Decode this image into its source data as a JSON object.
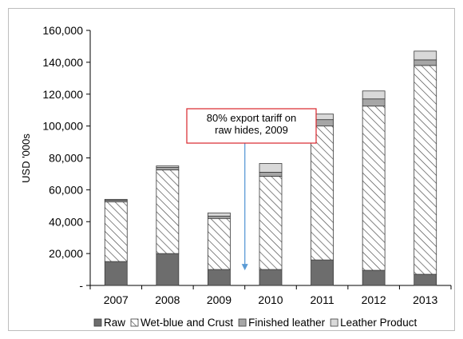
{
  "chart_data": {
    "type": "bar",
    "stacked": true,
    "title": "",
    "xlabel": "",
    "ylabel": "USD '000s",
    "ylim": [
      0,
      160000
    ],
    "yticks": [
      0,
      20000,
      40000,
      60000,
      80000,
      100000,
      120000,
      140000,
      160000
    ],
    "ytick_labels": [
      "-",
      "20,000",
      "40,000",
      "60,000",
      "80,000",
      "100,000",
      "120,000",
      "140,000",
      "160,000"
    ],
    "categories": [
      "2007",
      "2008",
      "2009",
      "2010",
      "2011",
      "2012",
      "2013"
    ],
    "series": [
      {
        "name": "Raw",
        "color": "#6d6d6d",
        "pattern": "solid",
        "values": [
          15000,
          20000,
          10000,
          10000,
          16000,
          9500,
          7000
        ]
      },
      {
        "name": "Wet-blue and Crust",
        "color": "#ffffff",
        "pattern": "hatch",
        "values": [
          37500,
          52500,
          32000,
          58500,
          84000,
          103000,
          131000
        ]
      },
      {
        "name": "Finished leather",
        "color": "#a6a6a6",
        "pattern": "solid",
        "values": [
          1000,
          1500,
          1500,
          2500,
          4000,
          4500,
          3500
        ]
      },
      {
        "name": "Leather Product",
        "color": "#d9d9d9",
        "pattern": "solid",
        "values": [
          500,
          1000,
          2000,
          5500,
          3500,
          5000,
          5500
        ]
      }
    ],
    "legend_position": "bottom",
    "grid": false,
    "annotations": [
      {
        "lines": [
          "80% export tariff on",
          "raw hides, 2009"
        ],
        "arrow_target_x": 2009.5,
        "arrow_target_y": 10000,
        "box_color": "#d9262b",
        "arrow_color": "#5b9bd5"
      }
    ]
  }
}
